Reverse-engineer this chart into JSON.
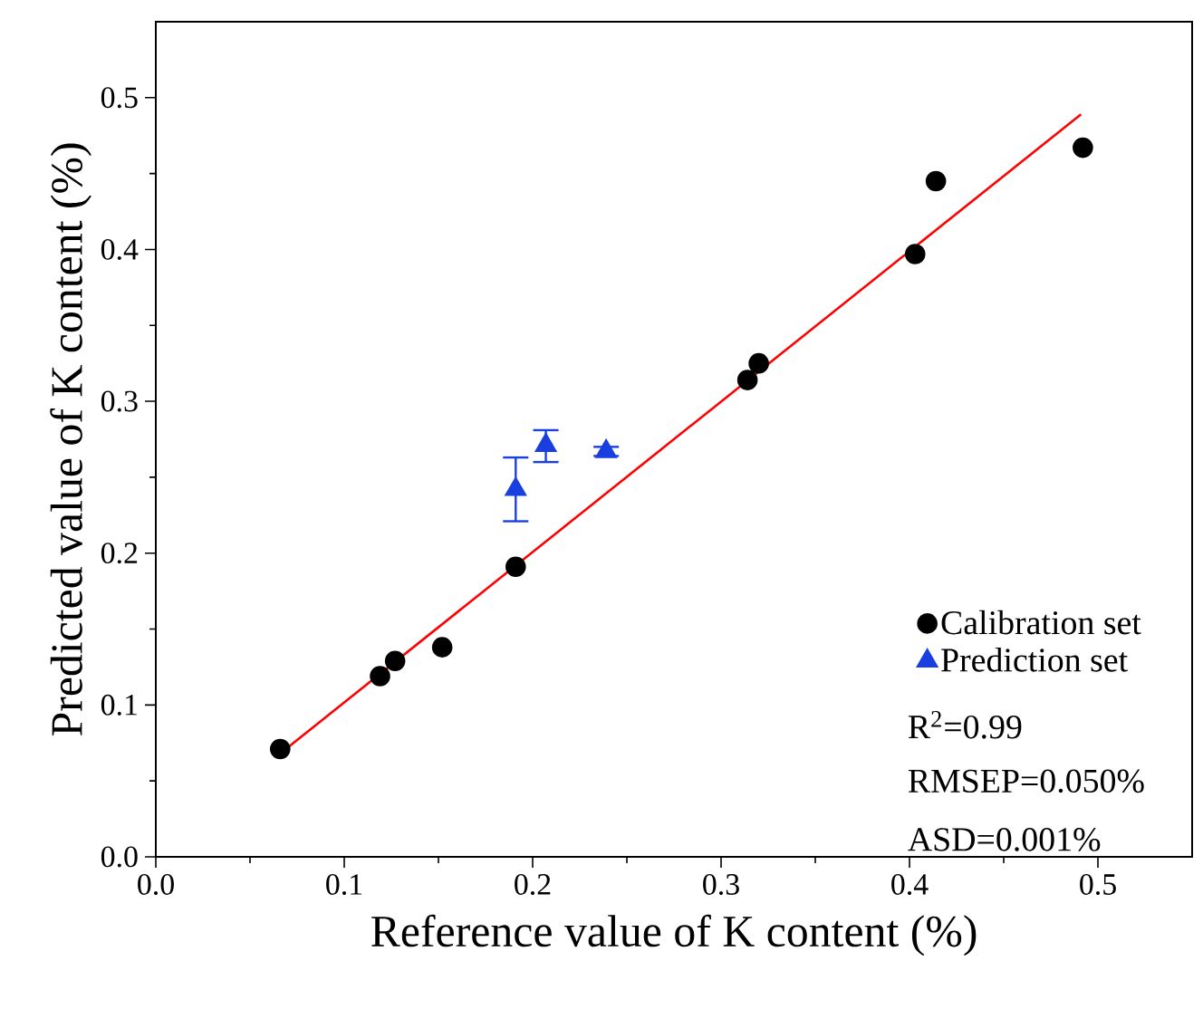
{
  "chart_data": {
    "type": "scatter",
    "xlabel": "Reference value of K content (%)",
    "ylabel": "Predicted value of K content (%)",
    "xlim": [
      0,
      0.55
    ],
    "ylim": [
      0,
      0.55
    ],
    "xticks": [
      {
        "value": 0,
        "label": "0.0"
      },
      0.1,
      0.2,
      0.3,
      0.4,
      0.5
    ],
    "yticks": [
      {
        "value": 0,
        "label": "0.0"
      },
      0.1,
      0.2,
      0.3,
      0.4,
      0.5
    ],
    "grid": false,
    "legend": "bottom right",
    "series": [
      {
        "name": "Calibration set",
        "color": "#000000",
        "marker": "circle",
        "x": [
          0.066,
          0.119,
          0.127,
          0.152,
          0.191,
          0.314,
          0.32,
          0.403,
          0.414,
          0.492
        ],
        "values": [
          0.071,
          0.119,
          0.129,
          0.138,
          0.191,
          0.314,
          0.325,
          0.397,
          0.445,
          0.467
        ]
      },
      {
        "name": "Prediction set",
        "color": "#1a3fe0",
        "marker": "triangle",
        "x": [
          0.191,
          0.207,
          0.239
        ],
        "values": [
          0.242,
          0.271,
          0.267
        ],
        "errors": [
          [
            0.221,
            0.263
          ],
          [
            0.26,
            0.281
          ],
          [
            0.264,
            0.27
          ]
        ]
      },
      {
        "type": "line",
        "color": "#ff0000",
        "marker": "none",
        "line_style": "solid",
        "x": [
          0.066,
          0.491
        ],
        "values": [
          0.068,
          0.489
        ]
      }
    ],
    "annotations": [
      "R$^{2}$=0.99",
      "RMSEP=0.050%",
      "ASD=0.001%"
    ]
  }
}
